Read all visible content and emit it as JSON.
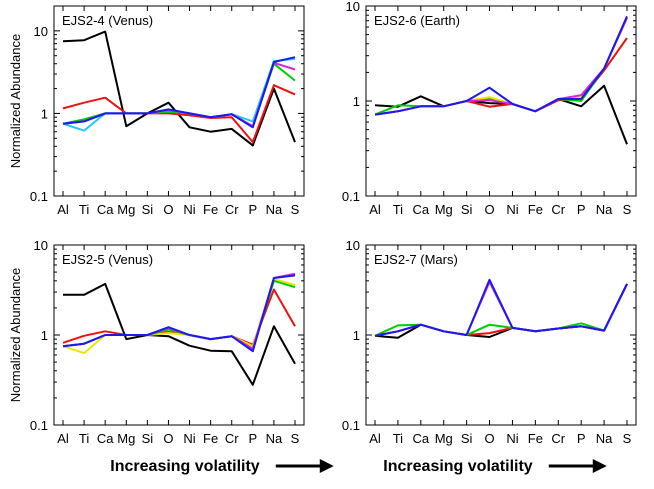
{
  "footer": {
    "label": "Increasing volatility"
  },
  "colors": {
    "black": "#000000",
    "red": "#ee1111",
    "green": "#00cc00",
    "yellow": "#e8e800",
    "cyan": "#22c8ff",
    "magenta": "#dd22dd",
    "blue": "#1a1aee"
  },
  "chart_data": [
    {
      "type": "line",
      "title": "EJS2-4 (Venus)",
      "xlabel": "",
      "ylabel": "Normalized Abundance",
      "yscale": "log",
      "ylim": [
        0.1,
        20
      ],
      "yticks": [
        "0.1",
        "1",
        "10"
      ],
      "grid": false,
      "categories": [
        "Al",
        "Ti",
        "Ca",
        "Mg",
        "Si",
        "O",
        "Ni",
        "Fe",
        "Cr",
        "P",
        "Na",
        "S"
      ],
      "series": [
        {
          "name": "black",
          "color": "#000000",
          "values": [
            7.5,
            7.7,
            9.8,
            0.7,
            1.0,
            1.35,
            0.68,
            0.6,
            0.65,
            0.41,
            2.0,
            0.45
          ]
        },
        {
          "name": "red",
          "color": "#ee1111",
          "values": [
            1.15,
            1.35,
            1.55,
            1.0,
            1.0,
            1.0,
            0.95,
            0.88,
            0.9,
            0.45,
            2.2,
            1.7
          ]
        },
        {
          "name": "green",
          "color": "#00cc00",
          "values": [
            0.75,
            0.85,
            1.0,
            1.0,
            1.0,
            1.05,
            1.0,
            0.9,
            0.98,
            0.7,
            4.0,
            2.5
          ]
        },
        {
          "name": "cyan",
          "color": "#22c8ff",
          "values": [
            0.75,
            0.62,
            1.0,
            1.0,
            1.0,
            1.1,
            1.0,
            0.9,
            0.98,
            0.8,
            4.3,
            4.6
          ]
        },
        {
          "name": "magenta",
          "color": "#dd22dd",
          "values": [
            0.75,
            0.8,
            1.0,
            1.0,
            1.0,
            1.1,
            1.0,
            0.9,
            0.98,
            0.7,
            4.1,
            3.4
          ]
        },
        {
          "name": "blue",
          "color": "#1a1aee",
          "values": [
            0.75,
            0.8,
            1.0,
            1.0,
            1.0,
            1.12,
            1.0,
            0.9,
            0.98,
            0.68,
            4.2,
            4.8
          ]
        }
      ]
    },
    {
      "type": "line",
      "title": "EJS2-6 (Earth)",
      "xlabel": "",
      "ylabel": "",
      "yscale": "log",
      "ylim": [
        0.1,
        10
      ],
      "yticks": [
        "0.1",
        "1",
        "10"
      ],
      "grid": false,
      "categories": [
        "Al",
        "Ti",
        "Ca",
        "Mg",
        "Si",
        "O",
        "Ni",
        "Fe",
        "Cr",
        "P",
        "Na",
        "S"
      ],
      "series": [
        {
          "name": "black",
          "color": "#000000",
          "values": [
            0.9,
            0.87,
            1.12,
            0.88,
            1.0,
            0.95,
            0.93,
            0.78,
            1.05,
            0.88,
            1.45,
            0.35
          ]
        },
        {
          "name": "red",
          "color": "#ee1111",
          "values": [
            0.72,
            0.78,
            0.88,
            0.88,
            1.0,
            0.87,
            0.93,
            0.78,
            1.02,
            1.05,
            2.1,
            4.6
          ]
        },
        {
          "name": "green",
          "color": "#00cc00",
          "values": [
            0.72,
            0.9,
            0.88,
            0.88,
            1.0,
            1.05,
            0.93,
            0.78,
            1.05,
            1.0,
            2.2,
            7.5
          ]
        },
        {
          "name": "yellow",
          "color": "#e8e800",
          "values": [
            0.72,
            0.78,
            0.88,
            0.88,
            1.0,
            1.1,
            0.93,
            0.78,
            1.05,
            1.1,
            2.2,
            7.5
          ]
        },
        {
          "name": "magenta",
          "color": "#dd22dd",
          "values": [
            0.72,
            0.78,
            0.88,
            0.88,
            1.0,
            1.02,
            0.93,
            0.78,
            1.05,
            1.15,
            2.2,
            7.5
          ]
        },
        {
          "name": "blue",
          "color": "#1a1aee",
          "values": [
            0.72,
            0.78,
            0.88,
            0.88,
            1.0,
            1.38,
            0.93,
            0.78,
            1.05,
            1.05,
            2.2,
            7.8
          ]
        }
      ]
    },
    {
      "type": "line",
      "title": "EJS2-5 (Venus)",
      "xlabel": "",
      "ylabel": "Normalized Abundance",
      "yscale": "log",
      "ylim": [
        0.1,
        10
      ],
      "yticks": [
        "0.1",
        "1",
        "10"
      ],
      "grid": false,
      "categories": [
        "Al",
        "Ti",
        "Ca",
        "Mg",
        "Si",
        "O",
        "Ni",
        "Fe",
        "Cr",
        "P",
        "Na",
        "S"
      ],
      "series": [
        {
          "name": "black",
          "color": "#000000",
          "values": [
            2.8,
            2.8,
            3.7,
            0.9,
            1.0,
            0.97,
            0.76,
            0.67,
            0.66,
            0.28,
            1.25,
            0.48
          ]
        },
        {
          "name": "red",
          "color": "#ee1111",
          "values": [
            0.82,
            0.98,
            1.1,
            1.0,
            1.0,
            1.08,
            1.0,
            0.9,
            0.97,
            0.78,
            3.2,
            1.25
          ]
        },
        {
          "name": "yellow",
          "color": "#e8e800",
          "values": [
            0.75,
            0.63,
            1.0,
            1.0,
            1.0,
            1.05,
            1.0,
            0.9,
            0.97,
            0.75,
            4.2,
            3.6
          ]
        },
        {
          "name": "green",
          "color": "#00cc00",
          "values": [
            0.75,
            0.8,
            1.0,
            1.0,
            1.0,
            1.15,
            1.0,
            0.9,
            0.97,
            0.7,
            4.0,
            3.4
          ]
        },
        {
          "name": "magenta",
          "color": "#dd22dd",
          "values": [
            0.75,
            0.8,
            1.0,
            1.0,
            1.0,
            1.2,
            1.0,
            0.9,
            0.97,
            0.7,
            4.3,
            4.8
          ]
        },
        {
          "name": "blue",
          "color": "#1a1aee",
          "values": [
            0.75,
            0.8,
            1.0,
            1.0,
            1.0,
            1.22,
            1.0,
            0.9,
            0.97,
            0.66,
            4.3,
            4.6
          ]
        }
      ]
    },
    {
      "type": "line",
      "title": "EJS2-7 (Mars)",
      "xlabel": "",
      "ylabel": "",
      "yscale": "log",
      "ylim": [
        0.1,
        10
      ],
      "yticks": [
        "0.1",
        "1",
        "10"
      ],
      "grid": false,
      "categories": [
        "Al",
        "Ti",
        "Ca",
        "Mg",
        "Si",
        "O",
        "Ni",
        "Fe",
        "Cr",
        "P",
        "Na",
        "S"
      ],
      "series": [
        {
          "name": "black",
          "color": "#000000",
          "values": [
            0.98,
            0.93,
            1.3,
            1.1,
            1.0,
            0.95,
            1.2,
            1.1,
            1.18,
            1.25,
            1.12,
            3.7
          ]
        },
        {
          "name": "red",
          "color": "#ee1111",
          "values": [
            0.98,
            1.1,
            1.3,
            1.1,
            1.0,
            1.05,
            1.2,
            1.1,
            1.18,
            1.25,
            1.12,
            3.7
          ]
        },
        {
          "name": "green",
          "color": "#00cc00",
          "values": [
            0.98,
            1.28,
            1.3,
            1.1,
            1.0,
            1.3,
            1.2,
            1.1,
            1.18,
            1.35,
            1.12,
            3.7
          ]
        },
        {
          "name": "magenta",
          "color": "#dd22dd",
          "values": [
            0.98,
            1.1,
            1.3,
            1.1,
            1.0,
            3.9,
            1.2,
            1.1,
            1.18,
            1.25,
            1.12,
            3.7
          ]
        },
        {
          "name": "blue",
          "color": "#1a1aee",
          "values": [
            0.98,
            1.1,
            1.3,
            1.1,
            1.0,
            4.1,
            1.2,
            1.1,
            1.18,
            1.25,
            1.12,
            3.7
          ]
        }
      ]
    }
  ]
}
